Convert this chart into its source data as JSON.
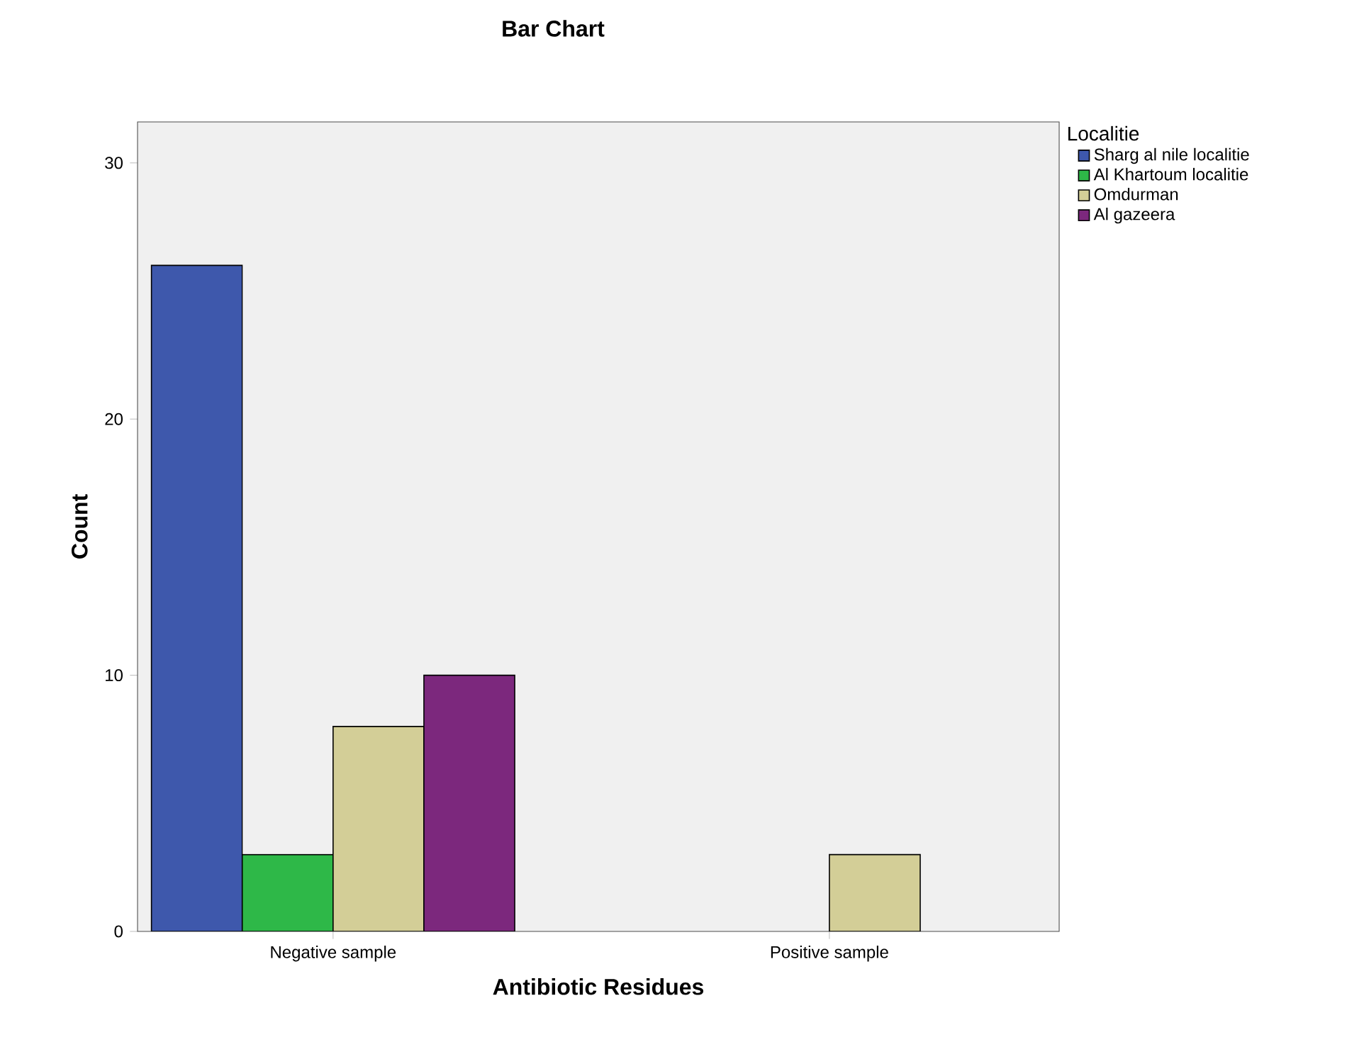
{
  "chart_data": {
    "type": "bar",
    "title": "Bar Chart",
    "xlabel": "Antibiotic Residues",
    "ylabel": "Count",
    "legend_title": "Localitie",
    "categories": [
      "Negative sample",
      "Positive sample"
    ],
    "series": [
      {
        "name": "Sharg al nile localitie",
        "color": "#3e58ac",
        "values": [
          26,
          null
        ]
      },
      {
        "name": "Al Khartoum localitie",
        "color": "#2eb848",
        "values": [
          3,
          null
        ]
      },
      {
        "name": "Omdurman",
        "color": "#d3ce97",
        "values": [
          8,
          3
        ]
      },
      {
        "name": "Al gazeera",
        "color": "#7c287d",
        "values": [
          10,
          null
        ]
      }
    ],
    "ylim": [
      0,
      31.6
    ],
    "yticks": [
      0,
      10,
      20,
      30
    ],
    "grid": false,
    "legend": "top right"
  }
}
